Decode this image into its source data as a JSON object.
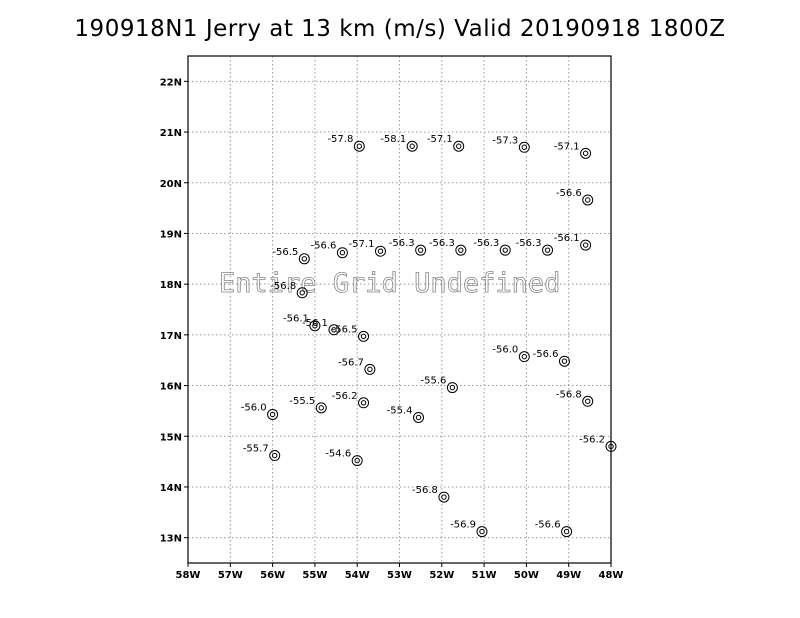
{
  "title": "190918N1 Jerry at 13 km (m/s) Valid 20190918 1800Z",
  "overlay_text": "Entire Grid Undefined",
  "chart_data": {
    "type": "scatter",
    "plot_kind": "wind barbs with station values",
    "title": "190918N1 Jerry at 13 km (m/s) Valid 20190918 1800Z",
    "x_ticks": [
      "58W",
      "57W",
      "56W",
      "55W",
      "54W",
      "53W",
      "52W",
      "51W",
      "50W",
      "49W",
      "48W"
    ],
    "y_ticks": [
      "13N",
      "14N",
      "15N",
      "16N",
      "17N",
      "18N",
      "19N",
      "20N",
      "21N",
      "22N"
    ],
    "xlim": [
      -58,
      -48
    ],
    "ylim": [
      12.5,
      22.5
    ],
    "grid": true,
    "points": [
      {
        "lon": -53.95,
        "lat": 20.72,
        "value": "-57.8"
      },
      {
        "lon": -52.7,
        "lat": 20.72,
        "value": "-58.1"
      },
      {
        "lon": -51.6,
        "lat": 20.72,
        "value": "-57.1"
      },
      {
        "lon": -50.05,
        "lat": 20.7,
        "value": "-57.3"
      },
      {
        "lon": -48.6,
        "lat": 20.58,
        "value": "-57.1"
      },
      {
        "lon": -48.55,
        "lat": 19.66,
        "value": "-56.6"
      },
      {
        "lon": -48.6,
        "lat": 18.77,
        "value": "-56.1"
      },
      {
        "lon": -49.5,
        "lat": 18.67,
        "value": "-56.3"
      },
      {
        "lon": -50.5,
        "lat": 18.67,
        "value": "-56.3"
      },
      {
        "lon": -51.55,
        "lat": 18.67,
        "value": "-56.3"
      },
      {
        "lon": -52.5,
        "lat": 18.67,
        "value": "-56.3"
      },
      {
        "lon": -53.45,
        "lat": 18.65,
        "value": "-57.1"
      },
      {
        "lon": -54.35,
        "lat": 18.62,
        "value": "-56.6"
      },
      {
        "lon": -55.25,
        "lat": 18.5,
        "value": "-56.5"
      },
      {
        "lon": -55.3,
        "lat": 17.83,
        "value": "-56.8"
      },
      {
        "lon": -55.0,
        "lat": 17.18,
        "value": "-56.1"
      },
      {
        "lon": -54.55,
        "lat": 17.1,
        "value": "-56.1"
      },
      {
        "lon": -53.85,
        "lat": 16.97,
        "value": "-56.5"
      },
      {
        "lon": -53.7,
        "lat": 16.32,
        "value": "-56.7"
      },
      {
        "lon": -53.85,
        "lat": 15.66,
        "value": "-56.2"
      },
      {
        "lon": -54.85,
        "lat": 15.56,
        "value": "-55.5"
      },
      {
        "lon": -56.0,
        "lat": 15.43,
        "value": "-56.0"
      },
      {
        "lon": -55.95,
        "lat": 14.62,
        "value": "-55.7"
      },
      {
        "lon": -54.0,
        "lat": 14.52,
        "value": "-54.6"
      },
      {
        "lon": -52.55,
        "lat": 15.37,
        "value": "-55.4"
      },
      {
        "lon": -51.75,
        "lat": 15.96,
        "value": "-55.6"
      },
      {
        "lon": -50.05,
        "lat": 16.57,
        "value": "-56.0"
      },
      {
        "lon": -49.1,
        "lat": 16.48,
        "value": "-56.6"
      },
      {
        "lon": -48.55,
        "lat": 15.69,
        "value": "-56.8"
      },
      {
        "lon": -48.0,
        "lat": 14.8,
        "value": "-56.2"
      },
      {
        "lon": -51.95,
        "lat": 13.8,
        "value": "-56.8"
      },
      {
        "lon": -51.05,
        "lat": 13.12,
        "value": "-56.9"
      },
      {
        "lon": -49.05,
        "lat": 13.12,
        "value": "-56.6"
      }
    ]
  }
}
